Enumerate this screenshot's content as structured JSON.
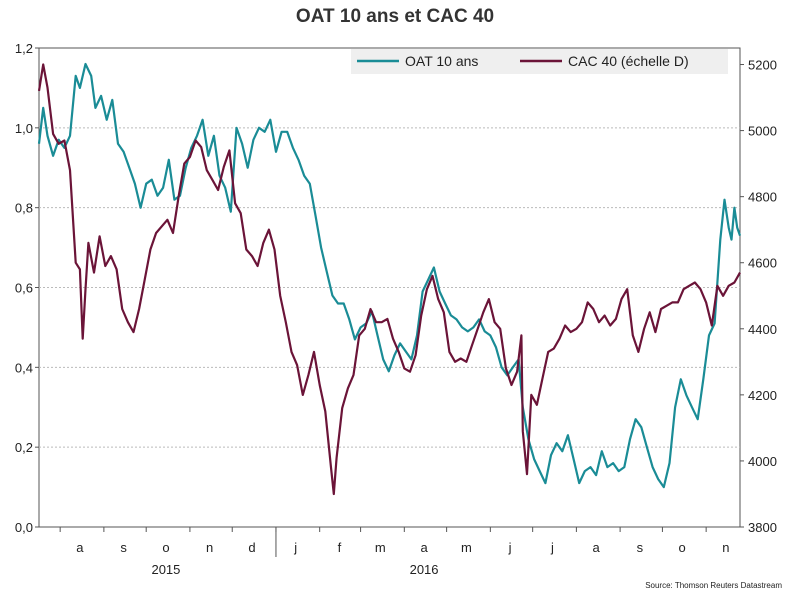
{
  "chart_data": {
    "type": "line",
    "title": "OAT 10 ans et CAC 40",
    "source": "Source: Thomson Reuters Datastream",
    "colors": {
      "oat": "#1a8c96",
      "cac": "#6b1438",
      "grid": "#bbbbbb",
      "legend_bg": "#efefef"
    },
    "grid": true,
    "legend_position": "top-right",
    "x_axis": {
      "type": "date",
      "range": [
        "2015-07-17",
        "2016-11-25"
      ],
      "month_ticks": [
        "a",
        "s",
        "o",
        "n",
        "d",
        "j",
        "f",
        "m",
        "a",
        "m",
        "j",
        "j",
        "a",
        "s",
        "o",
        "n"
      ],
      "month_tick_dates": [
        "2015-08-15",
        "2015-09-15",
        "2015-10-15",
        "2015-11-15",
        "2015-12-15",
        "2016-01-15",
        "2016-02-15",
        "2016-03-15",
        "2016-04-15",
        "2016-05-15",
        "2016-06-15",
        "2016-07-15",
        "2016-08-15",
        "2016-09-15",
        "2016-10-15",
        "2016-11-15"
      ],
      "years": [
        {
          "label": "2015",
          "date": "2015-10-15"
        },
        {
          "label": "2016",
          "date": "2016-04-15"
        }
      ]
    },
    "y_left": {
      "range": [
        0,
        1.2
      ],
      "ticks": [
        "0,0",
        "0,2",
        "0,4",
        "0,6",
        "0,8",
        "1,0",
        "1,2"
      ],
      "tick_values": [
        0,
        0.2,
        0.4,
        0.6,
        0.8,
        1.0,
        1.2
      ]
    },
    "y_right": {
      "range": [
        3800,
        5250
      ],
      "ticks": [
        "3800",
        "4000",
        "4200",
        "4400",
        "4600",
        "4800",
        "5000",
        "5200"
      ],
      "tick_values": [
        3800,
        4000,
        4200,
        4400,
        4600,
        4800,
        5000,
        5200
      ]
    },
    "series": [
      {
        "name": "OAT 10 ans",
        "axis": "left",
        "points": [
          [
            "2015-07-17",
            0.96
          ],
          [
            "2015-07-20",
            1.05
          ],
          [
            "2015-07-23",
            0.98
          ],
          [
            "2015-07-27",
            0.93
          ],
          [
            "2015-07-31",
            0.97
          ],
          [
            "2015-08-04",
            0.95
          ],
          [
            "2015-08-08",
            0.98
          ],
          [
            "2015-08-12",
            1.13
          ],
          [
            "2015-08-15",
            1.1
          ],
          [
            "2015-08-19",
            1.16
          ],
          [
            "2015-08-23",
            1.13
          ],
          [
            "2015-08-26",
            1.05
          ],
          [
            "2015-08-30",
            1.08
          ],
          [
            "2015-09-03",
            1.02
          ],
          [
            "2015-09-07",
            1.07
          ],
          [
            "2015-09-11",
            0.96
          ],
          [
            "2015-09-15",
            0.94
          ],
          [
            "2015-09-19",
            0.9
          ],
          [
            "2015-09-23",
            0.86
          ],
          [
            "2015-09-27",
            0.8
          ],
          [
            "2015-10-01",
            0.86
          ],
          [
            "2015-10-05",
            0.87
          ],
          [
            "2015-10-09",
            0.83
          ],
          [
            "2015-10-13",
            0.85
          ],
          [
            "2015-10-17",
            0.92
          ],
          [
            "2015-10-21",
            0.82
          ],
          [
            "2015-10-25",
            0.83
          ],
          [
            "2015-10-29",
            0.9
          ],
          [
            "2015-11-02",
            0.95
          ],
          [
            "2015-11-06",
            0.98
          ],
          [
            "2015-11-10",
            1.02
          ],
          [
            "2015-11-14",
            0.93
          ],
          [
            "2015-11-18",
            0.98
          ],
          [
            "2015-11-22",
            0.88
          ],
          [
            "2015-11-26",
            0.85
          ],
          [
            "2015-11-30",
            0.79
          ],
          [
            "2015-12-04",
            1.0
          ],
          [
            "2015-12-08",
            0.96
          ],
          [
            "2015-12-12",
            0.9
          ],
          [
            "2015-12-16",
            0.97
          ],
          [
            "2015-12-20",
            1.0
          ],
          [
            "2015-12-24",
            0.99
          ],
          [
            "2015-12-28",
            1.02
          ],
          [
            "2016-01-01",
            0.94
          ],
          [
            "2016-01-05",
            0.99
          ],
          [
            "2016-01-09",
            0.99
          ],
          [
            "2016-01-13",
            0.95
          ],
          [
            "2016-01-17",
            0.92
          ],
          [
            "2016-01-21",
            0.88
          ],
          [
            "2016-01-25",
            0.86
          ],
          [
            "2016-01-29",
            0.78
          ],
          [
            "2016-02-02",
            0.7
          ],
          [
            "2016-02-06",
            0.64
          ],
          [
            "2016-02-10",
            0.58
          ],
          [
            "2016-02-14",
            0.56
          ],
          [
            "2016-02-18",
            0.56
          ],
          [
            "2016-02-22",
            0.52
          ],
          [
            "2016-02-26",
            0.47
          ],
          [
            "2016-03-01",
            0.5
          ],
          [
            "2016-03-05",
            0.51
          ],
          [
            "2016-03-09",
            0.54
          ],
          [
            "2016-03-13",
            0.48
          ],
          [
            "2016-03-17",
            0.42
          ],
          [
            "2016-03-21",
            0.39
          ],
          [
            "2016-03-25",
            0.43
          ],
          [
            "2016-03-29",
            0.46
          ],
          [
            "2016-04-02",
            0.44
          ],
          [
            "2016-04-06",
            0.42
          ],
          [
            "2016-04-10",
            0.48
          ],
          [
            "2016-04-14",
            0.59
          ],
          [
            "2016-04-18",
            0.62
          ],
          [
            "2016-04-22",
            0.65
          ],
          [
            "2016-04-26",
            0.59
          ],
          [
            "2016-04-30",
            0.56
          ],
          [
            "2016-05-04",
            0.53
          ],
          [
            "2016-05-08",
            0.52
          ],
          [
            "2016-05-12",
            0.5
          ],
          [
            "2016-05-16",
            0.49
          ],
          [
            "2016-05-20",
            0.5
          ],
          [
            "2016-05-24",
            0.52
          ],
          [
            "2016-05-28",
            0.49
          ],
          [
            "2016-06-01",
            0.48
          ],
          [
            "2016-06-05",
            0.45
          ],
          [
            "2016-06-09",
            0.4
          ],
          [
            "2016-06-13",
            0.38
          ],
          [
            "2016-06-17",
            0.4
          ],
          [
            "2016-06-21",
            0.42
          ],
          [
            "2016-06-24",
            0.3
          ],
          [
            "2016-06-28",
            0.22
          ],
          [
            "2016-07-02",
            0.17
          ],
          [
            "2016-07-06",
            0.14
          ],
          [
            "2016-07-10",
            0.11
          ],
          [
            "2016-07-14",
            0.18
          ],
          [
            "2016-07-18",
            0.21
          ],
          [
            "2016-07-22",
            0.19
          ],
          [
            "2016-07-26",
            0.23
          ],
          [
            "2016-07-30",
            0.17
          ],
          [
            "2016-08-03",
            0.11
          ],
          [
            "2016-08-07",
            0.14
          ],
          [
            "2016-08-11",
            0.15
          ],
          [
            "2016-08-15",
            0.13
          ],
          [
            "2016-08-19",
            0.19
          ],
          [
            "2016-08-23",
            0.15
          ],
          [
            "2016-08-27",
            0.16
          ],
          [
            "2016-08-31",
            0.14
          ],
          [
            "2016-09-04",
            0.15
          ],
          [
            "2016-09-08",
            0.22
          ],
          [
            "2016-09-12",
            0.27
          ],
          [
            "2016-09-16",
            0.25
          ],
          [
            "2016-09-20",
            0.2
          ],
          [
            "2016-09-24",
            0.15
          ],
          [
            "2016-09-28",
            0.12
          ],
          [
            "2016-10-02",
            0.1
          ],
          [
            "2016-10-06",
            0.16
          ],
          [
            "2016-10-10",
            0.3
          ],
          [
            "2016-10-14",
            0.37
          ],
          [
            "2016-10-18",
            0.33
          ],
          [
            "2016-10-22",
            0.3
          ],
          [
            "2016-10-26",
            0.27
          ],
          [
            "2016-10-30",
            0.37
          ],
          [
            "2016-11-03",
            0.48
          ],
          [
            "2016-11-07",
            0.51
          ],
          [
            "2016-11-11",
            0.72
          ],
          [
            "2016-11-14",
            0.82
          ],
          [
            "2016-11-17",
            0.75
          ],
          [
            "2016-11-19",
            0.72
          ],
          [
            "2016-11-21",
            0.8
          ],
          [
            "2016-11-23",
            0.75
          ],
          [
            "2016-11-25",
            0.73
          ]
        ]
      },
      {
        "name": "CAC 40 (échelle D)",
        "axis": "right",
        "points": [
          [
            "2015-07-17",
            5120
          ],
          [
            "2015-07-20",
            5200
          ],
          [
            "2015-07-23",
            5130
          ],
          [
            "2015-07-27",
            4990
          ],
          [
            "2015-07-31",
            4960
          ],
          [
            "2015-08-04",
            4970
          ],
          [
            "2015-08-08",
            4880
          ],
          [
            "2015-08-12",
            4600
          ],
          [
            "2015-08-15",
            4580
          ],
          [
            "2015-08-17",
            4370
          ],
          [
            "2015-08-19",
            4520
          ],
          [
            "2015-08-21",
            4660
          ],
          [
            "2015-08-25",
            4570
          ],
          [
            "2015-08-29",
            4680
          ],
          [
            "2015-09-02",
            4590
          ],
          [
            "2015-09-06",
            4620
          ],
          [
            "2015-09-10",
            4580
          ],
          [
            "2015-09-14",
            4460
          ],
          [
            "2015-09-18",
            4420
          ],
          [
            "2015-09-22",
            4390
          ],
          [
            "2015-09-26",
            4460
          ],
          [
            "2015-09-30",
            4550
          ],
          [
            "2015-10-04",
            4640
          ],
          [
            "2015-10-08",
            4690
          ],
          [
            "2015-10-12",
            4710
          ],
          [
            "2015-10-16",
            4730
          ],
          [
            "2015-10-20",
            4690
          ],
          [
            "2015-10-24",
            4800
          ],
          [
            "2015-10-28",
            4900
          ],
          [
            "2015-11-01",
            4920
          ],
          [
            "2015-11-05",
            4970
          ],
          [
            "2015-11-09",
            4950
          ],
          [
            "2015-11-13",
            4880
          ],
          [
            "2015-11-17",
            4850
          ],
          [
            "2015-11-21",
            4820
          ],
          [
            "2015-11-25",
            4890
          ],
          [
            "2015-11-29",
            4940
          ],
          [
            "2015-12-03",
            4780
          ],
          [
            "2015-12-07",
            4750
          ],
          [
            "2015-12-11",
            4640
          ],
          [
            "2015-12-15",
            4620
          ],
          [
            "2015-12-19",
            4590
          ],
          [
            "2015-12-23",
            4660
          ],
          [
            "2015-12-27",
            4700
          ],
          [
            "2015-12-31",
            4640
          ],
          [
            "2016-01-04",
            4500
          ],
          [
            "2016-01-08",
            4420
          ],
          [
            "2016-01-12",
            4330
          ],
          [
            "2016-01-16",
            4290
          ],
          [
            "2016-01-20",
            4200
          ],
          [
            "2016-01-24",
            4260
          ],
          [
            "2016-01-28",
            4330
          ],
          [
            "2016-02-01",
            4230
          ],
          [
            "2016-02-05",
            4150
          ],
          [
            "2016-02-09",
            3980
          ],
          [
            "2016-02-11",
            3900
          ],
          [
            "2016-02-13",
            4010
          ],
          [
            "2016-02-17",
            4160
          ],
          [
            "2016-02-21",
            4220
          ],
          [
            "2016-02-25",
            4260
          ],
          [
            "2016-02-29",
            4380
          ],
          [
            "2016-03-04",
            4400
          ],
          [
            "2016-03-08",
            4460
          ],
          [
            "2016-03-12",
            4420
          ],
          [
            "2016-03-16",
            4420
          ],
          [
            "2016-03-20",
            4430
          ],
          [
            "2016-03-24",
            4370
          ],
          [
            "2016-03-28",
            4330
          ],
          [
            "2016-04-01",
            4280
          ],
          [
            "2016-04-05",
            4270
          ],
          [
            "2016-04-09",
            4320
          ],
          [
            "2016-04-13",
            4440
          ],
          [
            "2016-04-17",
            4520
          ],
          [
            "2016-04-21",
            4560
          ],
          [
            "2016-04-25",
            4490
          ],
          [
            "2016-04-29",
            4450
          ],
          [
            "2016-05-03",
            4330
          ],
          [
            "2016-05-07",
            4300
          ],
          [
            "2016-05-11",
            4310
          ],
          [
            "2016-05-15",
            4300
          ],
          [
            "2016-05-19",
            4350
          ],
          [
            "2016-05-23",
            4400
          ],
          [
            "2016-05-27",
            4450
          ],
          [
            "2016-05-31",
            4490
          ],
          [
            "2016-06-04",
            4420
          ],
          [
            "2016-06-08",
            4400
          ],
          [
            "2016-06-12",
            4280
          ],
          [
            "2016-06-16",
            4230
          ],
          [
            "2016-06-20",
            4270
          ],
          [
            "2016-06-23",
            4380
          ],
          [
            "2016-06-24",
            4090
          ],
          [
            "2016-06-27",
            3960
          ],
          [
            "2016-06-30",
            4200
          ],
          [
            "2016-07-04",
            4170
          ],
          [
            "2016-07-08",
            4250
          ],
          [
            "2016-07-12",
            4330
          ],
          [
            "2016-07-16",
            4340
          ],
          [
            "2016-07-20",
            4370
          ],
          [
            "2016-07-24",
            4410
          ],
          [
            "2016-07-28",
            4390
          ],
          [
            "2016-08-01",
            4400
          ],
          [
            "2016-08-05",
            4420
          ],
          [
            "2016-08-09",
            4480
          ],
          [
            "2016-08-13",
            4460
          ],
          [
            "2016-08-17",
            4420
          ],
          [
            "2016-08-21",
            4440
          ],
          [
            "2016-08-25",
            4410
          ],
          [
            "2016-08-29",
            4430
          ],
          [
            "2016-09-02",
            4490
          ],
          [
            "2016-09-06",
            4520
          ],
          [
            "2016-09-10",
            4380
          ],
          [
            "2016-09-14",
            4330
          ],
          [
            "2016-09-18",
            4400
          ],
          [
            "2016-09-22",
            4450
          ],
          [
            "2016-09-26",
            4390
          ],
          [
            "2016-09-30",
            4460
          ],
          [
            "2016-10-04",
            4470
          ],
          [
            "2016-10-08",
            4480
          ],
          [
            "2016-10-12",
            4480
          ],
          [
            "2016-10-16",
            4520
          ],
          [
            "2016-10-20",
            4530
          ],
          [
            "2016-10-24",
            4540
          ],
          [
            "2016-10-28",
            4520
          ],
          [
            "2016-11-01",
            4480
          ],
          [
            "2016-11-05",
            4410
          ],
          [
            "2016-11-09",
            4530
          ],
          [
            "2016-11-13",
            4500
          ],
          [
            "2016-11-17",
            4530
          ],
          [
            "2016-11-21",
            4540
          ],
          [
            "2016-11-25",
            4570
          ]
        ]
      }
    ]
  }
}
